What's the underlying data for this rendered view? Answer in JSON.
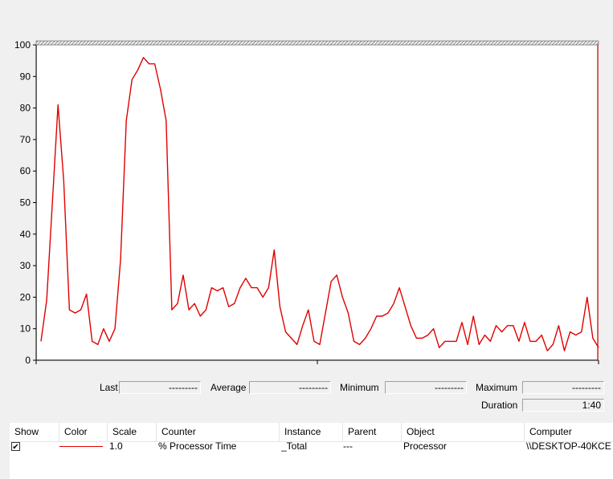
{
  "chart_data": {
    "type": "line",
    "ylim": [
      0,
      100
    ],
    "yticks": [
      "0",
      "10",
      "20",
      "30",
      "40",
      "50",
      "60",
      "70",
      "80",
      "90",
      "100"
    ],
    "line_color": "#e00000",
    "grid": false,
    "series": [
      {
        "values": [
          6,
          19,
          50,
          81,
          57,
          16,
          15,
          16,
          21,
          6,
          5,
          10,
          6,
          10,
          32,
          76,
          89,
          92,
          96,
          94,
          94,
          86,
          76,
          16,
          18,
          27,
          16,
          18,
          14,
          16,
          23,
          22,
          23,
          17,
          18,
          23,
          26,
          23,
          23,
          20,
          23,
          35,
          17,
          9,
          7,
          5,
          11,
          16,
          6,
          5,
          15,
          25,
          27,
          20,
          15,
          6,
          5,
          7,
          10,
          14,
          14,
          15,
          18,
          23,
          17,
          11,
          7,
          7,
          8,
          10,
          4,
          6,
          6,
          6,
          12,
          5,
          14,
          5,
          8,
          6,
          11,
          9,
          11,
          11,
          6,
          12,
          6,
          6,
          8,
          3,
          5,
          11,
          3,
          9,
          8,
          9,
          20,
          7,
          4
        ]
      }
    ]
  },
  "stats": {
    "last_label": "Last",
    "last_value": "---------",
    "average_label": "Average",
    "average_value": "---------",
    "minimum_label": "Minimum",
    "minimum_value": "---------",
    "maximum_label": "Maximum",
    "maximum_value": "---------",
    "duration_label": "Duration",
    "duration_value": "1:40"
  },
  "table": {
    "headers": {
      "show": "Show",
      "color": "Color",
      "scale": "Scale",
      "counter": "Counter",
      "instance": "Instance",
      "parent": "Parent",
      "object": "Object",
      "computer": "Computer"
    },
    "row": {
      "checked": "✔",
      "color": "#e00000",
      "scale": "1.0",
      "counter": "% Processor Time",
      "instance": "_Total",
      "parent": "---",
      "object": "Processor",
      "computer": "\\\\DESKTOP-40KCE"
    }
  }
}
